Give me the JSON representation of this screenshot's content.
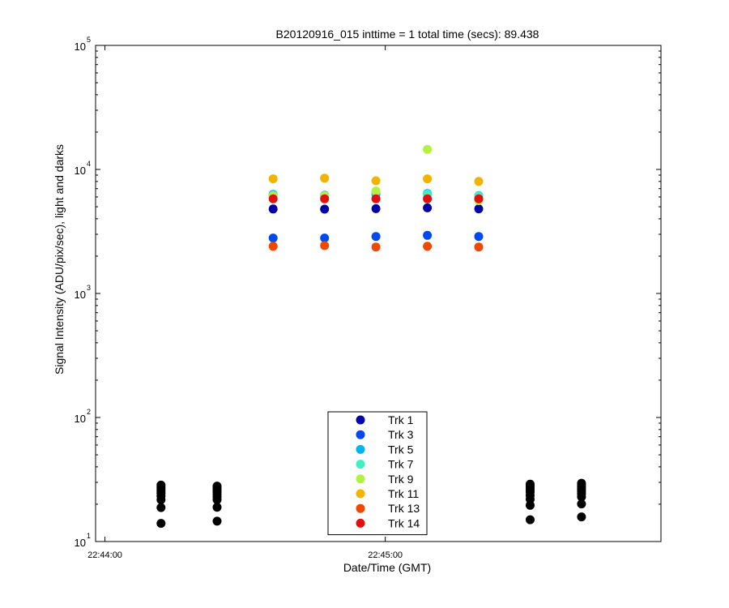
{
  "chart_data": {
    "type": "scatter",
    "title": "B20120916_015 inttime = 1 total time (secs): 89.438",
    "xlabel": "Date/Time (GMT)",
    "ylabel": "Signal Intensity (ADU/pix/sec), light and darks",
    "y_scale": "log",
    "ylim": [
      10,
      100000
    ],
    "xlim": [
      "22:43:58",
      "22:45:59"
    ],
    "x_ticks": [
      "22:44:00",
      "22:45:00"
    ],
    "y_ticks": [
      {
        "value": 10,
        "base": "10",
        "exp": "1"
      },
      {
        "value": 100,
        "base": "10",
        "exp": "2"
      },
      {
        "value": 1000,
        "base": "10",
        "exp": "3"
      },
      {
        "value": 10000,
        "base": "10",
        "exp": "4"
      },
      {
        "value": 100000,
        "base": "10",
        "exp": "5"
      }
    ],
    "grid": false,
    "legend_position": "bottom-center",
    "series": [
      {
        "name": "Trk 1",
        "color": "#0000a8",
        "points": [
          [
            "22:44:36",
            4800
          ],
          [
            "22:44:47",
            4780
          ],
          [
            "22:44:58",
            4830
          ],
          [
            "22:45:09",
            4900
          ],
          [
            "22:45:20",
            4810
          ]
        ]
      },
      {
        "name": "Trk 3",
        "color": "#0048f0",
        "points": [
          [
            "22:44:36",
            2800
          ],
          [
            "22:44:47",
            2800
          ],
          [
            "22:44:58",
            2880
          ],
          [
            "22:45:09",
            2940
          ],
          [
            "22:45:20",
            2880
          ]
        ]
      },
      {
        "name": "Trk 5",
        "color": "#00b4f0",
        "points": [
          [
            "22:44:36",
            6300
          ],
          [
            "22:44:47",
            6200
          ],
          [
            "22:44:58",
            6300
          ],
          [
            "22:45:09",
            6400
          ],
          [
            "22:45:20",
            6150
          ]
        ]
      },
      {
        "name": "Trk 7",
        "color": "#40f0c0",
        "points": [
          [
            "22:44:36",
            6200
          ],
          [
            "22:44:47",
            6150
          ],
          [
            "22:44:58",
            6600
          ],
          [
            "22:45:09",
            6300
          ],
          [
            "22:45:20",
            6100
          ]
        ]
      },
      {
        "name": "Trk 9",
        "color": "#b4f040",
        "points": [
          [
            "22:44:36",
            6100
          ],
          [
            "22:44:47",
            6100
          ],
          [
            "22:44:58",
            6700
          ],
          [
            "22:45:09",
            14500
          ],
          [
            "22:45:20",
            5600
          ]
        ]
      },
      {
        "name": "Trk 11",
        "color": "#f0b400",
        "points": [
          [
            "22:44:36",
            8400
          ],
          [
            "22:44:47",
            8500
          ],
          [
            "22:44:58",
            8100
          ],
          [
            "22:45:09",
            8400
          ],
          [
            "22:45:20",
            8000
          ]
        ]
      },
      {
        "name": "Trk 13",
        "color": "#f04800",
        "points": [
          [
            "22:44:36",
            2400
          ],
          [
            "22:44:47",
            2430
          ],
          [
            "22:44:58",
            2370
          ],
          [
            "22:45:09",
            2400
          ],
          [
            "22:45:20",
            2370
          ]
        ]
      },
      {
        "name": "Trk 14",
        "color": "#e01010",
        "points": [
          [
            "22:44:36",
            5800
          ],
          [
            "22:44:47",
            5800
          ],
          [
            "22:44:58",
            5800
          ],
          [
            "22:45:09",
            5800
          ],
          [
            "22:45:20",
            5800
          ]
        ]
      },
      {
        "name": "",
        "color": "#000000",
        "points": [
          [
            "22:44:12",
            28.5
          ],
          [
            "22:44:12",
            27.5
          ],
          [
            "22:44:12",
            26.5
          ],
          [
            "22:44:12",
            25.5
          ],
          [
            "22:44:12",
            24.5
          ],
          [
            "22:44:12",
            23.3
          ],
          [
            "22:44:12",
            21.7
          ],
          [
            "22:44:12",
            18.8
          ],
          [
            "22:44:12",
            14
          ],
          [
            "22:44:24",
            28.0
          ],
          [
            "22:44:24",
            27.0
          ],
          [
            "22:44:24",
            26.0
          ],
          [
            "22:44:24",
            25.0
          ],
          [
            "22:44:24",
            24.0
          ],
          [
            "22:44:24",
            23.0
          ],
          [
            "22:44:24",
            21.7
          ],
          [
            "22:44:24",
            18.9
          ],
          [
            "22:44:24",
            14.6
          ],
          [
            "22:45:31",
            29.0
          ],
          [
            "22:45:31",
            28.0
          ],
          [
            "22:45:31",
            27.0
          ],
          [
            "22:45:31",
            26.0
          ],
          [
            "22:45:31",
            25.0
          ],
          [
            "22:45:31",
            23.5
          ],
          [
            "22:45:31",
            21.9
          ],
          [
            "22:45:31",
            19.6
          ],
          [
            "22:45:31",
            15
          ],
          [
            "22:45:42",
            29.5
          ],
          [
            "22:45:42",
            28.5
          ],
          [
            "22:45:42",
            27.5
          ],
          [
            "22:45:42",
            26.5
          ],
          [
            "22:45:42",
            25.5
          ],
          [
            "22:45:42",
            24.3
          ],
          [
            "22:45:42",
            22.9
          ],
          [
            "22:45:42",
            20.1
          ],
          [
            "22:45:42",
            15.8
          ]
        ]
      }
    ]
  }
}
